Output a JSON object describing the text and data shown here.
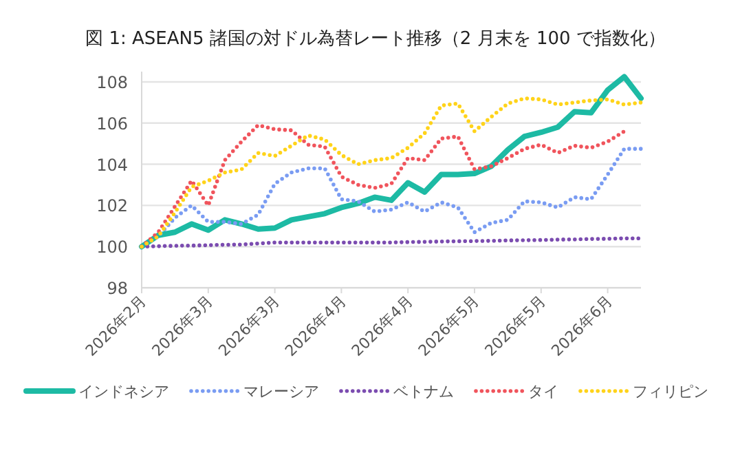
{
  "chart_data": {
    "type": "line",
    "title": "図 1: ASEAN5 諸国の対ドル為替レート推移（2 月末を 100 で指数化）",
    "categories": [
      "2026年2月",
      null,
      null,
      null,
      "2026年3月",
      null,
      null,
      null,
      "2026年3月",
      null,
      null,
      null,
      "2026年4月",
      null,
      null,
      null,
      "2026年4月",
      null,
      null,
      null,
      "2026年5月",
      null,
      null,
      null,
      "2026年5月",
      null,
      null,
      null,
      "2026年6月",
      null,
      null
    ],
    "ylim": [
      98,
      108.5
    ],
    "yticks": [
      98,
      100,
      102,
      104,
      106,
      108
    ],
    "grid": "y",
    "legend": "bottom",
    "marker": "none",
    "series": [
      {
        "name": "インドネシア",
        "color": "#1dbaa4",
        "line_style": "solid",
        "values": [
          100,
          100.55,
          100.7,
          101.1,
          100.8,
          101.3,
          101.1,
          100.85,
          100.9,
          101.3,
          101.45,
          101.6,
          101.9,
          102.1,
          102.4,
          102.25,
          103.1,
          102.65,
          103.5,
          103.5,
          103.55,
          103.9,
          104.7,
          105.35,
          105.55,
          105.8,
          106.55,
          106.5,
          107.6,
          108.25,
          107.2
        ]
      },
      {
        "name": "マレーシア",
        "color": "#7a9cf2",
        "line_style": "dotted",
        "values": [
          100,
          100.5,
          101.4,
          102.0,
          101.2,
          101.2,
          101.1,
          101.55,
          103.05,
          103.6,
          103.8,
          103.8,
          102.3,
          102.2,
          101.7,
          101.8,
          102.15,
          101.7,
          102.15,
          101.9,
          100.7,
          101.15,
          101.3,
          102.2,
          102.15,
          101.9,
          102.4,
          102.3,
          103.5,
          104.75,
          104.75
        ]
      },
      {
        "name": "ベトナム",
        "color": "#7b4cb0",
        "line_style": "dotted",
        "values": [
          100,
          100.02,
          100.04,
          100.05,
          100.07,
          100.09,
          100.1,
          100.15,
          100.2,
          100.2,
          100.2,
          100.2,
          100.2,
          100.2,
          100.2,
          100.2,
          100.22,
          100.23,
          100.25,
          100.26,
          100.27,
          100.28,
          100.3,
          100.31,
          100.32,
          100.34,
          100.35,
          100.37,
          100.38,
          100.4,
          100.4
        ]
      },
      {
        "name": "タイ",
        "color": "#f0545c",
        "line_style": "dotted",
        "values": [
          100,
          100.7,
          101.95,
          103.2,
          102.0,
          104.2,
          105.1,
          105.9,
          105.7,
          105.65,
          104.95,
          104.85,
          103.4,
          103.0,
          102.85,
          103.05,
          104.3,
          104.2,
          105.25,
          105.35,
          103.75,
          103.9,
          104.3,
          104.75,
          104.95,
          104.55,
          104.9,
          104.8,
          105.1,
          105.6,
          null
        ]
      },
      {
        "name": "フィリピン",
        "color": "#ffd31a",
        "line_style": "dotted",
        "values": [
          100,
          100.5,
          101.65,
          102.9,
          103.2,
          103.6,
          103.75,
          104.55,
          104.4,
          104.9,
          105.4,
          105.2,
          104.45,
          104.0,
          104.2,
          104.3,
          104.8,
          105.5,
          106.85,
          106.95,
          105.6,
          106.3,
          106.95,
          107.2,
          107.15,
          106.9,
          107.0,
          107.1,
          107.15,
          106.9,
          107.0
        ]
      }
    ]
  }
}
